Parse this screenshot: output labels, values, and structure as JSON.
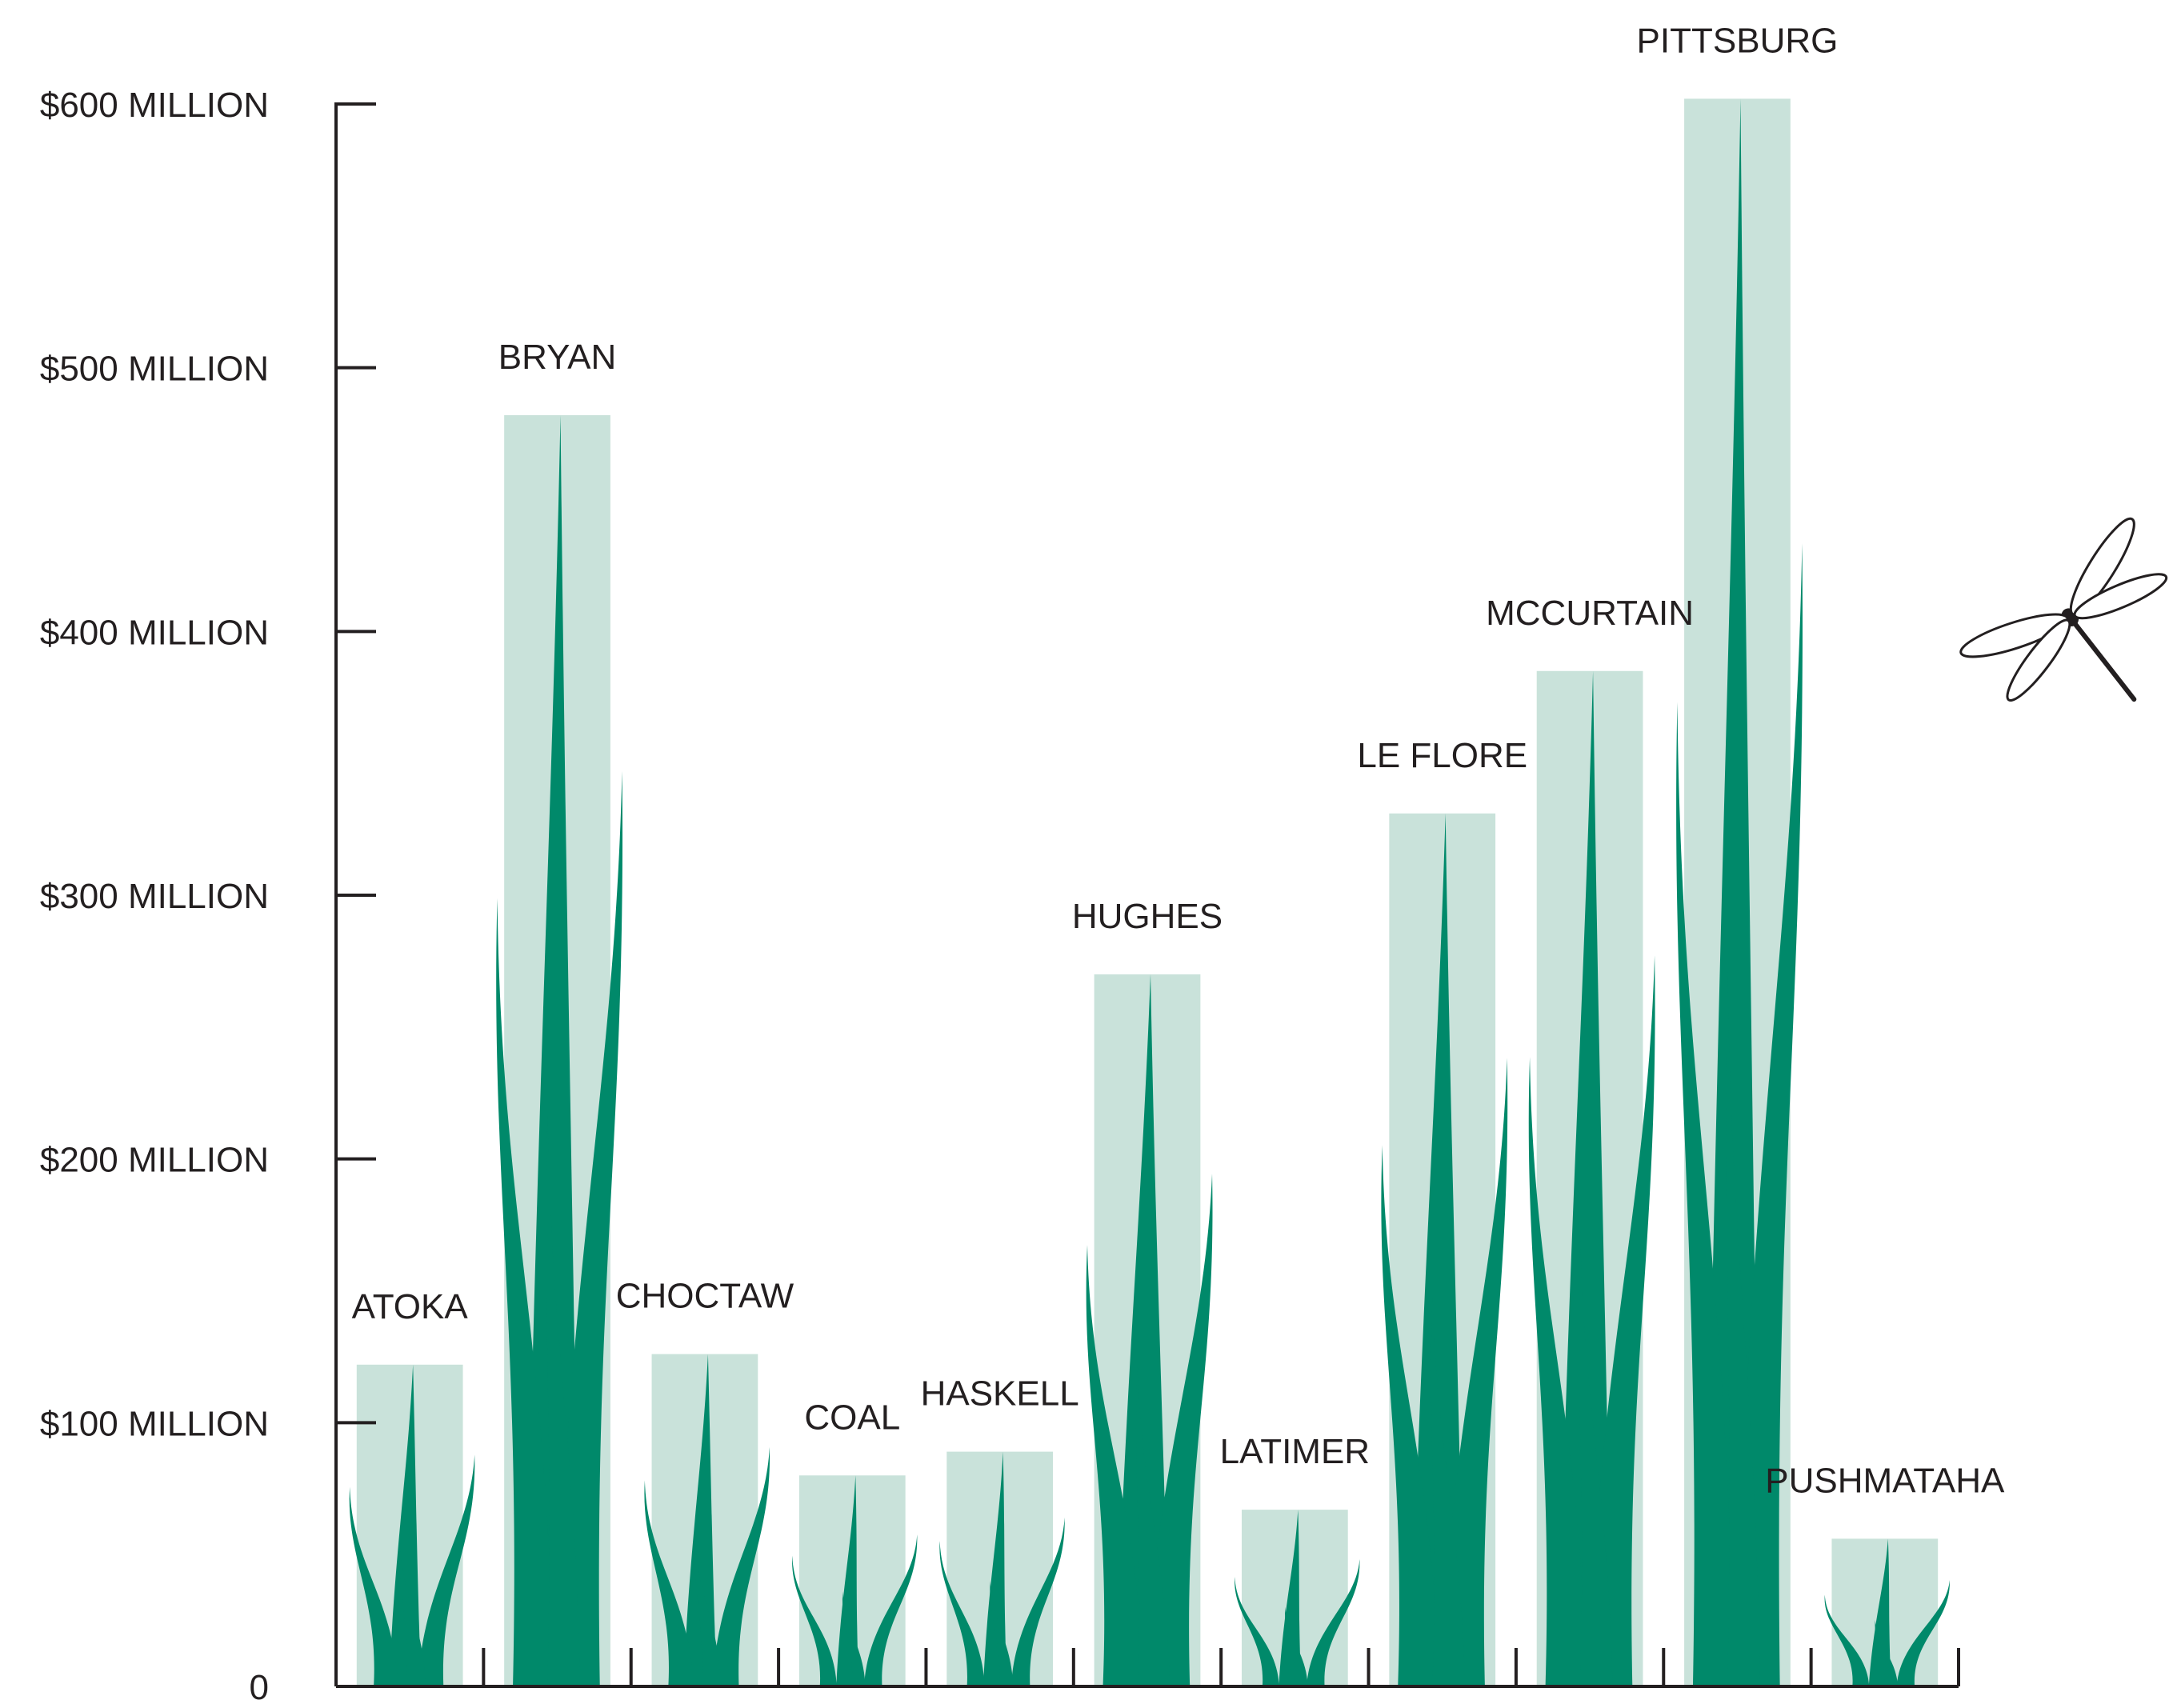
{
  "chart_data": {
    "type": "bar",
    "categories": [
      "ATOKA",
      "BRYAN",
      "CHOCTAW",
      "COAL",
      "HASKELL",
      "HUGHES",
      "LATIMER",
      "LE FLORE",
      "MCCURTAIN",
      "PITTSBURG",
      "PUSHMATAHA"
    ],
    "values": [
      122,
      482,
      126,
      80,
      89,
      270,
      67,
      331,
      385,
      602,
      56
    ],
    "ylim": [
      0,
      600
    ],
    "yticks": [
      0,
      100,
      200,
      300,
      400,
      500,
      600
    ],
    "ytick_labels": [
      "0",
      "$100 MILLION",
      "$200 MILLION",
      "$300 MILLION",
      "$400 MILLION",
      "$500 MILLION",
      "$600 MILLION"
    ],
    "grid": false,
    "title": "",
    "xlabel": "",
    "ylabel": ""
  },
  "colors": {
    "bar_fill": "#c9e2da",
    "grass": "#00896a",
    "axis": "#231f20",
    "text": "#231f20"
  },
  "decorations": {
    "icon": "dragonfly-icon"
  }
}
